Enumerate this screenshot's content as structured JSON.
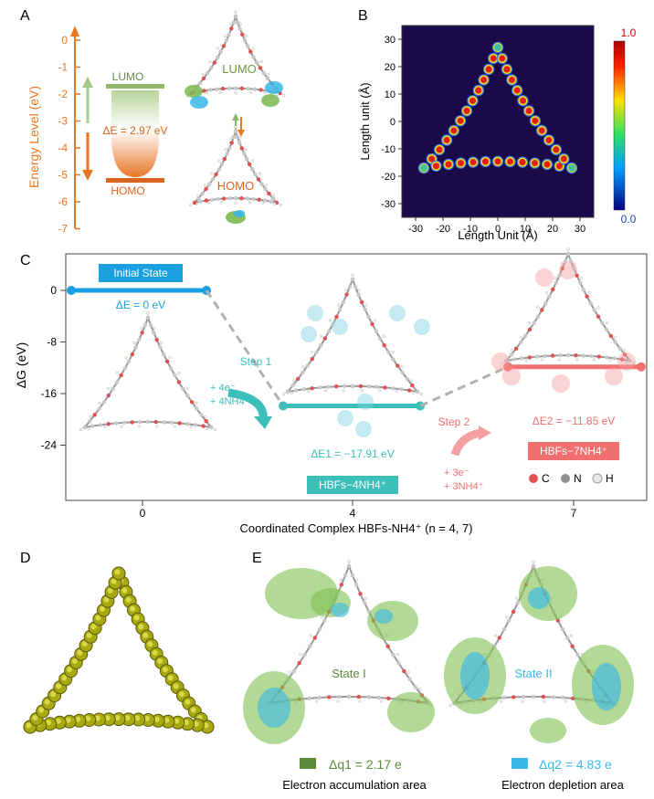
{
  "panels": {
    "A": {
      "letter": "A",
      "axis_label": "Energy Level (eV)",
      "ticks": [
        "0",
        "-1",
        "-2",
        "-3",
        "-4",
        "-5",
        "-6",
        "-7"
      ],
      "lumo_label": "LUMO",
      "homo_label": "HOMO",
      "gap_label": "ΔE = 2.97 eV",
      "orbital_lumo": "LUMO",
      "orbital_homo": "HOMO",
      "accent_color": "#e87722",
      "lumo_color": "#8db86b",
      "homo_color": "#d9661f"
    },
    "B": {
      "letter": "B",
      "ylabel": "Length unit (Å)",
      "xlabel": "Length Unit (Å)",
      "xticks": [
        "-30",
        "-20",
        "-10",
        "0",
        "10",
        "20",
        "30"
      ],
      "yticks": [
        "30",
        "20",
        "10",
        "0",
        "-10",
        "-20",
        "-30"
      ],
      "colorbar_max": "1.0",
      "colorbar_min": "0.0",
      "background_color": "#1a0a4a"
    },
    "C": {
      "letter": "C",
      "ylabel": "ΔG (eV)",
      "xlabel": "Coordinated Complex  HBFs-NH4⁺ (n = 4, 7)",
      "yticks": [
        "0",
        "-8",
        "-16",
        "-24"
      ],
      "xticks": [
        "0",
        "4",
        "7"
      ],
      "initial_state": "Initial State",
      "de0": "ΔE = 0 eV",
      "de1": "ΔE1 = −17.91 eV",
      "de2": "ΔE2 = −11.85 eV",
      "box1": "HBFs−4NH4⁺",
      "box2": "HBFs−7NH4⁺",
      "step1": "Step 1",
      "step1_a": "+ 4e⁻",
      "step1_b": "+ 4NH4⁺",
      "step2": "Step 2",
      "step2_a": "+ 3e⁻",
      "step2_b": "+ 3NH4⁺",
      "legend_c": "C",
      "legend_n": "N",
      "legend_h": "H",
      "level_values": [
        0,
        -17.91,
        -11.85
      ],
      "blue_color": "#1a9fe0",
      "teal_color": "#3bbfb8",
      "pink_color": "#f07070"
    },
    "D": {
      "letter": "D"
    },
    "E": {
      "letter": "E",
      "state1": "State I",
      "state2": "State II",
      "dq1": "Δq1 = 2.17 e",
      "dq2": "Δq2 = 4.83 e",
      "accum": "Electron accumulation area",
      "deplete": "Electron depletion area",
      "green_color": "#5a8a3a",
      "cyan_color": "#3ab8e8"
    }
  }
}
